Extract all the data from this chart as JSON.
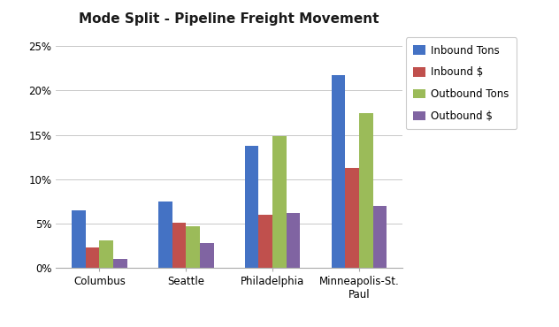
{
  "title": "Mode Split - Pipeline Freight Movement",
  "categories": [
    "Columbus",
    "Seattle",
    "Philadelphia",
    "Minneapolis-St.\nPaul"
  ],
  "series": [
    {
      "name": "Inbound Tons",
      "color": "#4472C4",
      "values": [
        0.065,
        0.075,
        0.138,
        0.217
      ]
    },
    {
      "name": "Inbound $",
      "color": "#C0504D",
      "values": [
        0.023,
        0.051,
        0.06,
        0.113
      ]
    },
    {
      "name": "Outbound Tons",
      "color": "#9BBB59",
      "values": [
        0.031,
        0.047,
        0.149,
        0.174
      ]
    },
    {
      "name": "Outbound $",
      "color": "#8064A2",
      "values": [
        0.01,
        0.028,
        0.062,
        0.07
      ]
    }
  ],
  "ylim": [
    0,
    0.265
  ],
  "yticks": [
    0.0,
    0.05,
    0.1,
    0.15,
    0.2,
    0.25
  ],
  "ytick_labels": [
    "0%",
    "5%",
    "10%",
    "15%",
    "20%",
    "25%"
  ],
  "background_color": "#FFFFFF",
  "plot_bg_color": "#FFFFFF",
  "grid_color": "#C8C8C8",
  "bar_width": 0.16,
  "title_fontsize": 11,
  "legend_fontsize": 8.5,
  "tick_fontsize": 8.5,
  "fig_width": 6.32,
  "fig_height": 3.7
}
